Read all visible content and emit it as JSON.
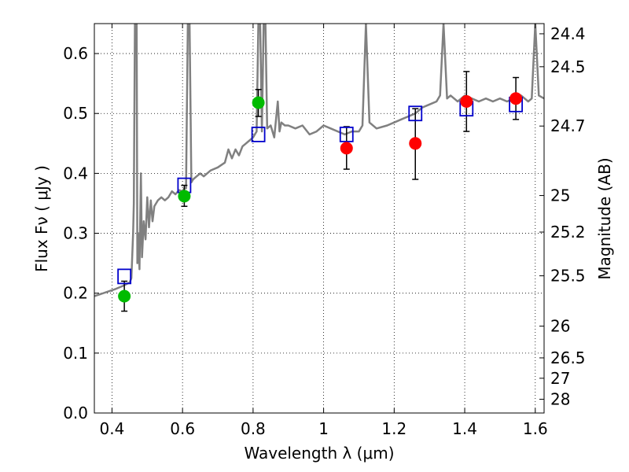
{
  "chart_data": {
    "type": "scatter",
    "xlabel": "Wavelength  λ (μm)",
    "ylabel": "Flux  Fν  ( μJy )",
    "y2label": "Magnitude (AB)",
    "xlim": [
      0.35,
      1.625
    ],
    "ylim": [
      0.0,
      0.65
    ],
    "grid": true,
    "x_ticks": [
      {
        "value": 0.4,
        "label": "0.4"
      },
      {
        "value": 0.6,
        "label": "0.6"
      },
      {
        "value": 0.8,
        "label": "0.8"
      },
      {
        "value": 1.0,
        "label": "1"
      },
      {
        "value": 1.2,
        "label": "1.2"
      },
      {
        "value": 1.4,
        "label": "1.4"
      },
      {
        "value": 1.6,
        "label": "1.6"
      }
    ],
    "y_ticks": [
      {
        "value": 0.0,
        "label": "0.0"
      },
      {
        "value": 0.1,
        "label": "0.1"
      },
      {
        "value": 0.2,
        "label": "0.2"
      },
      {
        "value": 0.3,
        "label": "0.3"
      },
      {
        "value": 0.4,
        "label": "0.4"
      },
      {
        "value": 0.5,
        "label": "0.5"
      },
      {
        "value": 0.6,
        "label": "0.6"
      }
    ],
    "mag_ticks": [
      {
        "flux": 0.633,
        "label": "24.4"
      },
      {
        "flux": 0.578,
        "label": "24.5"
      },
      {
        "flux": 0.479,
        "label": "24.7"
      },
      {
        "flux": 0.363,
        "label": "25"
      },
      {
        "flux": 0.302,
        "label": "25.2"
      },
      {
        "flux": 0.229,
        "label": "25.5"
      },
      {
        "flux": 0.145,
        "label": "26"
      },
      {
        "flux": 0.092,
        "label": "26.5"
      },
      {
        "flux": 0.058,
        "label": "27"
      },
      {
        "flux": 0.023,
        "label": "28"
      }
    ],
    "model_spectrum": {
      "color": "#808080",
      "points": [
        [
          0.35,
          0.195
        ],
        [
          0.37,
          0.199
        ],
        [
          0.39,
          0.203
        ],
        [
          0.41,
          0.207
        ],
        [
          0.43,
          0.212
        ],
        [
          0.45,
          0.218
        ],
        [
          0.455,
          0.225
        ],
        [
          0.46,
          0.3
        ],
        [
          0.462,
          0.35
        ],
        [
          0.465,
          0.65
        ],
        [
          0.47,
          0.65
        ],
        [
          0.472,
          0.25
        ],
        [
          0.475,
          0.3
        ],
        [
          0.478,
          0.24
        ],
        [
          0.482,
          0.4
        ],
        [
          0.485,
          0.26
        ],
        [
          0.49,
          0.32
        ],
        [
          0.495,
          0.29
        ],
        [
          0.5,
          0.36
        ],
        [
          0.505,
          0.31
        ],
        [
          0.51,
          0.355
        ],
        [
          0.515,
          0.32
        ],
        [
          0.52,
          0.345
        ],
        [
          0.53,
          0.355
        ],
        [
          0.54,
          0.36
        ],
        [
          0.55,
          0.355
        ],
        [
          0.56,
          0.36
        ],
        [
          0.57,
          0.37
        ],
        [
          0.58,
          0.365
        ],
        [
          0.59,
          0.372
        ],
        [
          0.6,
          0.37
        ],
        [
          0.605,
          0.375
        ],
        [
          0.61,
          0.375
        ],
        [
          0.615,
          0.65
        ],
        [
          0.62,
          0.65
        ],
        [
          0.625,
          0.385
        ],
        [
          0.63,
          0.39
        ],
        [
          0.64,
          0.395
        ],
        [
          0.65,
          0.4
        ],
        [
          0.66,
          0.395
        ],
        [
          0.68,
          0.405
        ],
        [
          0.7,
          0.41
        ],
        [
          0.72,
          0.418
        ],
        [
          0.73,
          0.44
        ],
        [
          0.74,
          0.425
        ],
        [
          0.75,
          0.44
        ],
        [
          0.76,
          0.43
        ],
        [
          0.77,
          0.445
        ],
        [
          0.78,
          0.45
        ],
        [
          0.79,
          0.455
        ],
        [
          0.8,
          0.46
        ],
        [
          0.805,
          0.465
        ],
        [
          0.81,
          0.47
        ],
        [
          0.815,
          0.65
        ],
        [
          0.82,
          0.65
        ],
        [
          0.825,
          0.47
        ],
        [
          0.83,
          0.65
        ],
        [
          0.835,
          0.65
        ],
        [
          0.84,
          0.475
        ],
        [
          0.85,
          0.48
        ],
        [
          0.86,
          0.46
        ],
        [
          0.87,
          0.52
        ],
        [
          0.875,
          0.47
        ],
        [
          0.88,
          0.485
        ],
        [
          0.89,
          0.48
        ],
        [
          0.9,
          0.48
        ],
        [
          0.92,
          0.475
        ],
        [
          0.94,
          0.48
        ],
        [
          0.96,
          0.465
        ],
        [
          0.98,
          0.47
        ],
        [
          1.0,
          0.48
        ],
        [
          1.02,
          0.475
        ],
        [
          1.04,
          0.47
        ],
        [
          1.06,
          0.465
        ],
        [
          1.08,
          0.47
        ],
        [
          1.1,
          0.47
        ],
        [
          1.11,
          0.48
        ],
        [
          1.12,
          0.65
        ],
        [
          1.13,
          0.485
        ],
        [
          1.15,
          0.475
        ],
        [
          1.18,
          0.48
        ],
        [
          1.2,
          0.485
        ],
        [
          1.22,
          0.49
        ],
        [
          1.24,
          0.495
        ],
        [
          1.26,
          0.5
        ],
        [
          1.28,
          0.51
        ],
        [
          1.3,
          0.515
        ],
        [
          1.32,
          0.52
        ],
        [
          1.33,
          0.53
        ],
        [
          1.34,
          0.65
        ],
        [
          1.35,
          0.525
        ],
        [
          1.36,
          0.53
        ],
        [
          1.38,
          0.52
        ],
        [
          1.4,
          0.53
        ],
        [
          1.42,
          0.525
        ],
        [
          1.44,
          0.52
        ],
        [
          1.46,
          0.525
        ],
        [
          1.48,
          0.52
        ],
        [
          1.5,
          0.525
        ],
        [
          1.52,
          0.52
        ],
        [
          1.54,
          0.525
        ],
        [
          1.56,
          0.53
        ],
        [
          1.58,
          0.52
        ],
        [
          1.59,
          0.525
        ],
        [
          1.6,
          0.65
        ],
        [
          1.61,
          0.53
        ],
        [
          1.625,
          0.525
        ]
      ]
    },
    "series": [
      {
        "marker": "open-square",
        "color": "#0000cc",
        "points": [
          {
            "x": 0.435,
            "y": 0.228
          },
          {
            "x": 0.605,
            "y": 0.38
          },
          {
            "x": 0.815,
            "y": 0.465
          },
          {
            "x": 1.065,
            "y": 0.465
          },
          {
            "x": 1.26,
            "y": 0.5
          },
          {
            "x": 1.405,
            "y": 0.508
          },
          {
            "x": 1.545,
            "y": 0.515
          }
        ]
      },
      {
        "marker": "filled-circle",
        "color": "#00bb00",
        "points": [
          {
            "x": 0.435,
            "y": 0.195,
            "err_low": 0.17,
            "err_high": 0.22
          },
          {
            "x": 0.605,
            "y": 0.362,
            "err_low": 0.345,
            "err_high": 0.38
          },
          {
            "x": 0.815,
            "y": 0.518,
            "err_low": 0.495,
            "err_high": 0.54
          }
        ]
      },
      {
        "marker": "filled-circle",
        "color": "#ff0000",
        "points": [
          {
            "x": 1.065,
            "y": 0.442,
            "err_low": 0.407,
            "err_high": 0.478
          },
          {
            "x": 1.26,
            "y": 0.45,
            "err_low": 0.39,
            "err_high": 0.508
          },
          {
            "x": 1.405,
            "y": 0.52,
            "err_low": 0.47,
            "err_high": 0.57
          },
          {
            "x": 1.545,
            "y": 0.525,
            "err_low": 0.49,
            "err_high": 0.56
          }
        ]
      }
    ]
  }
}
